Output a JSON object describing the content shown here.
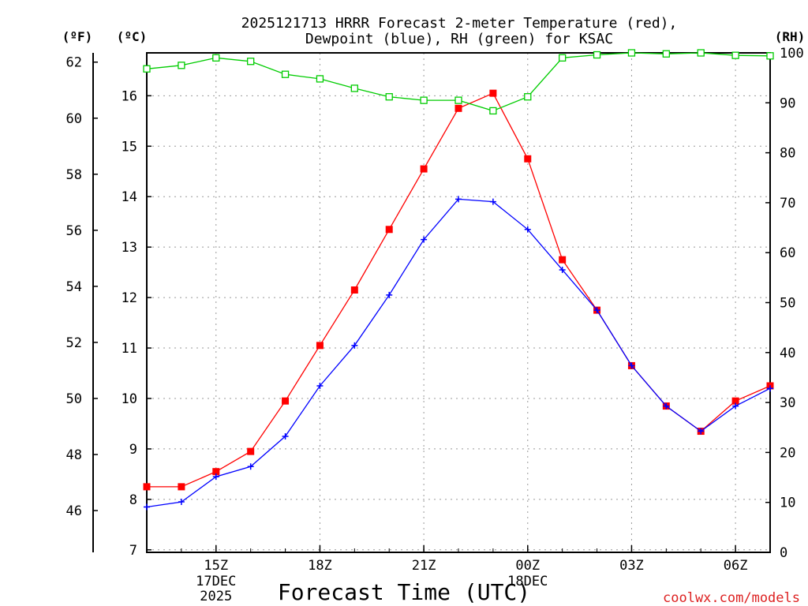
{
  "chart_data": {
    "type": "line",
    "title_line1": "2025121713 HRRR Forecast 2-meter Temperature (red),",
    "title_line2": "Dewpoint (blue), RH (green) for KSAC",
    "xlabel": "Forecast Time (UTC)",
    "watermark": "coolwx.com/models",
    "units": {
      "f": "(ºF)",
      "c": "(ºC)",
      "rh": "(RH)"
    },
    "x_hours": [
      13,
      14,
      15,
      16,
      17,
      18,
      19,
      20,
      21,
      22,
      23,
      24,
      25,
      26,
      27,
      28,
      29,
      30,
      31
    ],
    "xlim": [
      13,
      31
    ],
    "x_ticks": [
      {
        "hour": 15,
        "label": "15Z",
        "sub1": "17DEC",
        "sub2": "2025"
      },
      {
        "hour": 18,
        "label": "18Z",
        "sub1": "",
        "sub2": ""
      },
      {
        "hour": 21,
        "label": "21Z",
        "sub1": "",
        "sub2": ""
      },
      {
        "hour": 24,
        "label": "00Z",
        "sub1": "18DEC",
        "sub2": ""
      },
      {
        "hour": 27,
        "label": "03Z",
        "sub1": "",
        "sub2": ""
      },
      {
        "hour": 30,
        "label": "06Z",
        "sub1": "",
        "sub2": ""
      }
    ],
    "y_left_c": {
      "min": 6.95,
      "max": 16.85,
      "ticks": [
        7,
        8,
        9,
        10,
        11,
        12,
        13,
        14,
        15,
        16
      ]
    },
    "y_left_f": {
      "ticks": [
        46,
        48,
        50,
        52,
        54,
        56,
        58,
        60,
        62
      ]
    },
    "y_right_rh": {
      "min": 0,
      "max": 100,
      "ticks": [
        0,
        10,
        20,
        30,
        40,
        50,
        60,
        70,
        80,
        90,
        100
      ]
    },
    "grid": true,
    "series": [
      {
        "name": "Temperature",
        "axis": "c",
        "color": "#ff0000",
        "marker": "filled-square",
        "values": [
          8.25,
          8.25,
          8.55,
          8.95,
          9.95,
          11.05,
          12.15,
          13.35,
          14.55,
          15.75,
          16.05,
          14.75,
          12.75,
          11.75,
          10.65,
          9.85,
          9.35,
          9.95,
          10.25
        ]
      },
      {
        "name": "Dewpoint",
        "axis": "c",
        "color": "#0000ff",
        "marker": "plus",
        "values": [
          7.85,
          7.95,
          8.45,
          8.65,
          9.25,
          10.25,
          11.05,
          12.05,
          13.15,
          13.95,
          13.9,
          13.35,
          12.55,
          11.75,
          10.65,
          9.85,
          9.35,
          9.85,
          10.2
        ]
      },
      {
        "name": "RH",
        "axis": "rh",
        "color": "#00cc00",
        "marker": "open-square",
        "values": [
          96.8,
          97.5,
          99.0,
          98.3,
          95.7,
          94.8,
          92.9,
          91.2,
          90.5,
          90.5,
          88.4,
          91.2,
          99.0,
          99.6,
          100.0,
          99.8,
          100.0,
          99.5,
          99.4
        ]
      }
    ]
  }
}
